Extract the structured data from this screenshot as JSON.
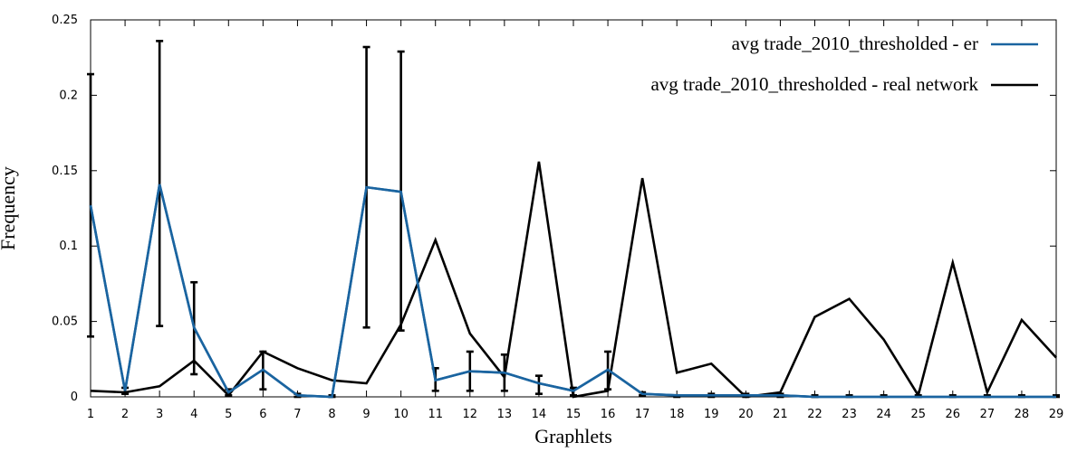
{
  "chart_data": {
    "type": "line",
    "xlabel": "Graphlets",
    "ylabel": "Frequency",
    "xlim": [
      1,
      29
    ],
    "ylim": [
      0,
      0.25
    ],
    "x_ticks": [
      "1",
      "2",
      "3",
      "4",
      "5",
      "6",
      "7",
      "8",
      "9",
      "10",
      "11",
      "12",
      "13",
      "14",
      "15",
      "16",
      "17",
      "18",
      "19",
      "20",
      "21",
      "22",
      "23",
      "24",
      "25",
      "26",
      "27",
      "28",
      "29"
    ],
    "y_ticks": [
      "0",
      "0.05",
      "0.1",
      "0.15",
      "0.2",
      "0.25"
    ],
    "grid": false,
    "legend_position": "top-right",
    "series": [
      {
        "name": "avg trade_2010_thresholded - er",
        "color": "#1a64a0",
        "values": [
          0.127,
          0.004,
          0.141,
          0.046,
          0.003,
          0.018,
          0.001,
          0.0,
          0.139,
          0.136,
          0.011,
          0.017,
          0.016,
          0.009,
          0.004,
          0.018,
          0.002,
          0.001,
          0.001,
          0.001,
          0.001,
          0.0,
          0.0,
          0.0,
          0.0,
          0.0,
          0.0,
          0.0,
          0.0
        ],
        "error_low": [
          0.04,
          0.002,
          0.047,
          0.015,
          0.001,
          0.005,
          0.0,
          0.0,
          0.046,
          0.044,
          0.004,
          0.004,
          0.004,
          0.002,
          0.001,
          0.005,
          0.001,
          0.0,
          0.0,
          0.0,
          0.0,
          0.0,
          0.0,
          0.0,
          0.0,
          0.0,
          0.0,
          0.0,
          0.0
        ],
        "error_high": [
          0.214,
          0.006,
          0.236,
          0.076,
          0.005,
          0.03,
          0.002,
          0.001,
          0.232,
          0.229,
          0.019,
          0.03,
          0.028,
          0.014,
          0.006,
          0.03,
          0.003,
          0.001,
          0.002,
          0.002,
          0.002,
          0.001,
          0.001,
          0.001,
          0.001,
          0.001,
          0.001,
          0.001,
          0.001
        ]
      },
      {
        "name": "avg trade_2010_thresholded - real network",
        "color": "#000000",
        "values": [
          0.004,
          0.003,
          0.007,
          0.024,
          0.001,
          0.03,
          0.019,
          0.011,
          0.009,
          0.048,
          0.104,
          0.042,
          0.013,
          0.156,
          0.0,
          0.004,
          0.145,
          0.016,
          0.022,
          0.0,
          0.003,
          0.053,
          0.065,
          0.038,
          0.001,
          0.089,
          0.003,
          0.051,
          0.026
        ]
      }
    ]
  }
}
